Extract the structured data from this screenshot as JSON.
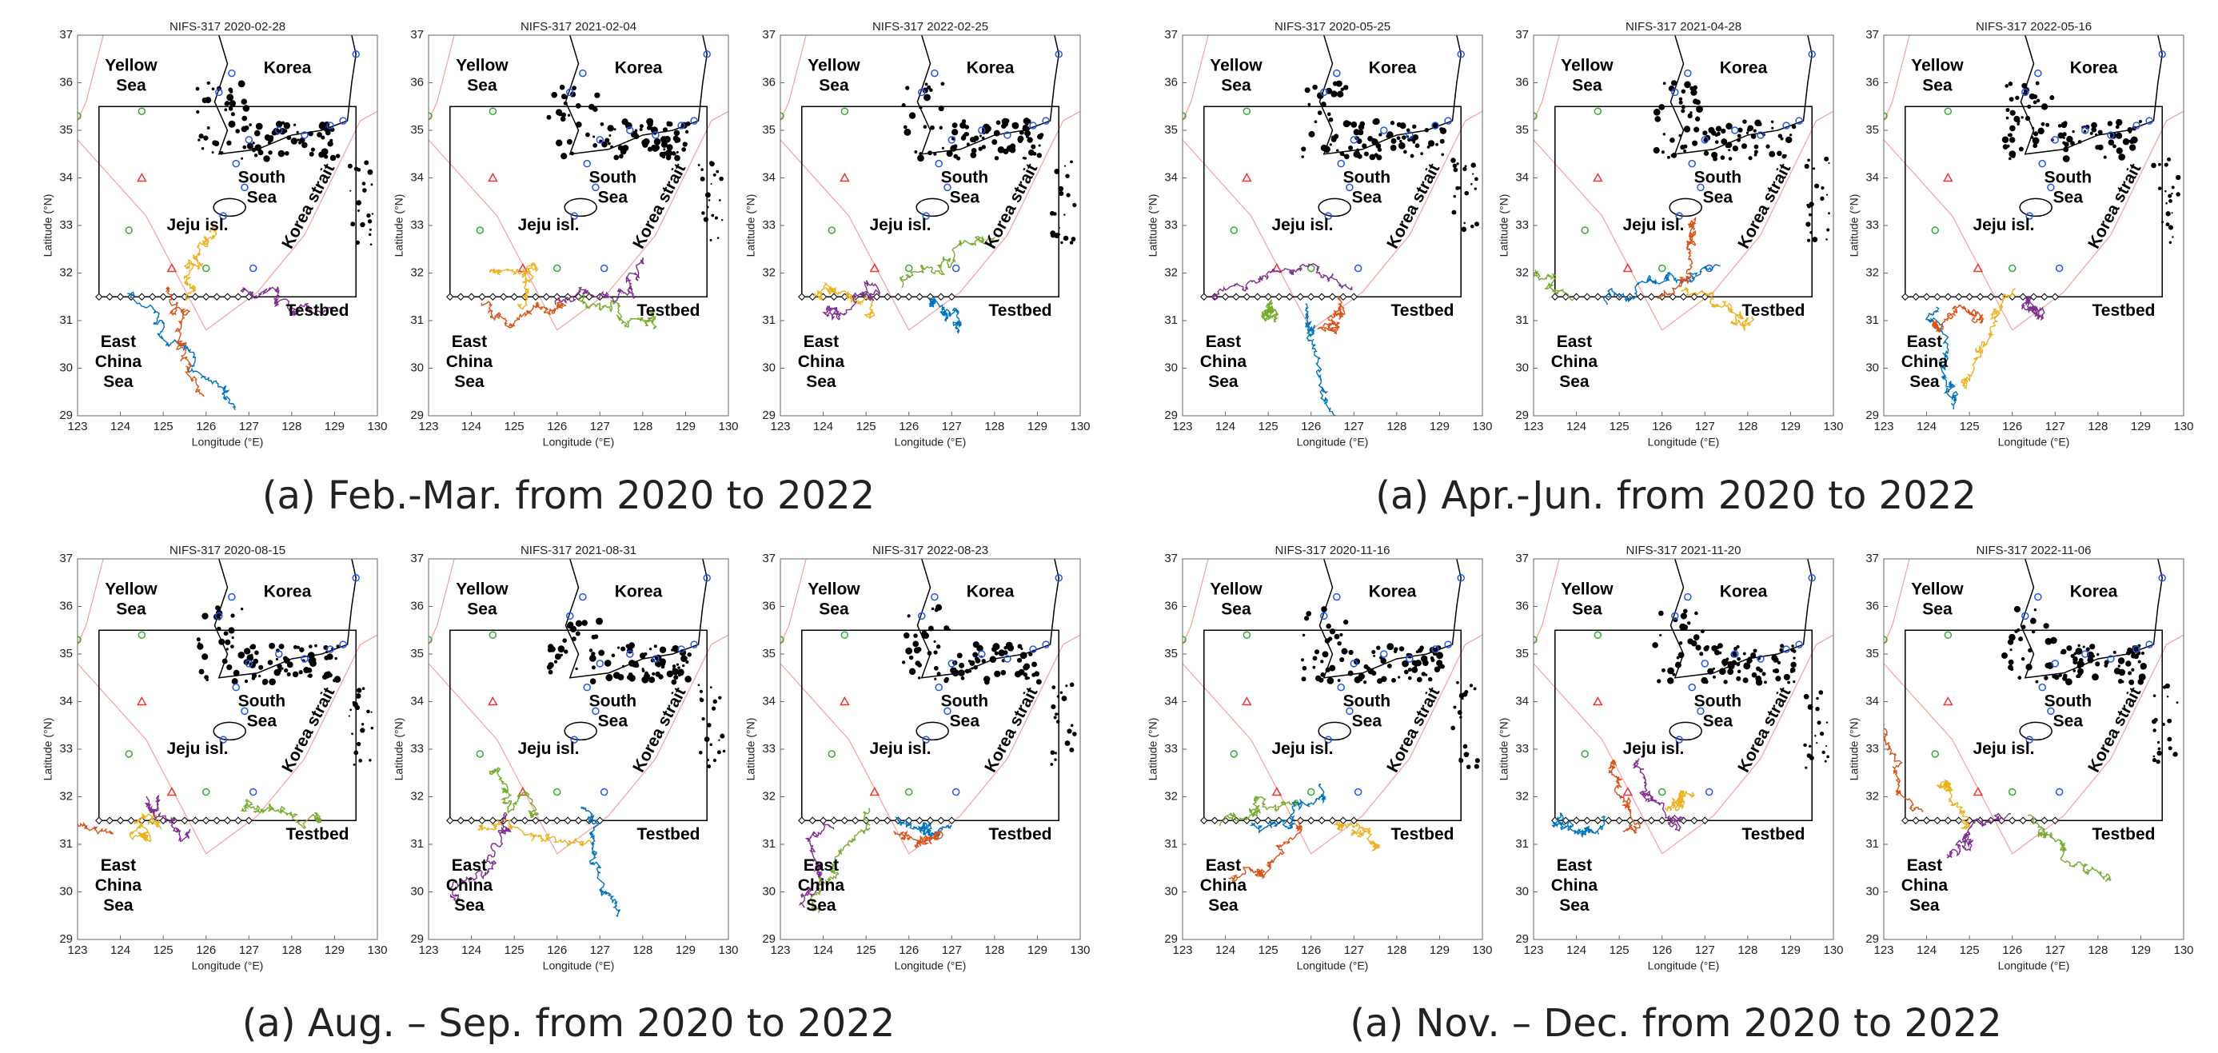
{
  "panels": [
    {
      "title": "NIFS-317 2020-02-28"
    },
    {
      "title": "NIFS-317 2021-02-04"
    },
    {
      "title": "NIFS-317 2022-02-25"
    },
    {
      "title": "NIFS-317 2020-05-25"
    },
    {
      "title": "NIFS-317 2021-04-28"
    },
    {
      "title": "NIFS-317 2022-05-16"
    },
    {
      "title": "NIFS-317 2020-08-15"
    },
    {
      "title": "NIFS-317 2021-08-31"
    },
    {
      "title": "NIFS-317 2022-08-23"
    },
    {
      "title": "NIFS-317 2020-11-16"
    },
    {
      "title": "NIFS-317 2021-11-20"
    },
    {
      "title": "NIFS-317 2022-11-06"
    }
  ],
  "axes": {
    "x_label": "Longitude (°E)",
    "y_label": "Latitude (°N)",
    "xlim": [
      123,
      130
    ],
    "ylim": [
      29,
      37
    ],
    "xticks": [
      123,
      124,
      125,
      126,
      127,
      128,
      129,
      130
    ],
    "yticks": [
      29,
      30,
      31,
      32,
      33,
      34,
      35,
      36,
      37
    ]
  },
  "map_labels": {
    "yellow_sea": [
      "Yellow",
      "Sea"
    ],
    "korea": [
      "Korea"
    ],
    "south_sea": [
      "South",
      "Sea"
    ],
    "jeju": [
      "Jeju isl."
    ],
    "korea_strait": [
      "Korea strait"
    ],
    "testbed": [
      "Testbed"
    ],
    "east_china_sea": [
      "East",
      "China",
      "Sea"
    ]
  },
  "captions": [
    "(a) Feb.-Mar. from 2020 to 2022",
    "(a) Apr.-Jun. from 2020 to 2022",
    "(a) Aug. – Sep. from 2020 to 2022",
    "(a) Nov. – Dec. from 2020 to 2022"
  ]
}
